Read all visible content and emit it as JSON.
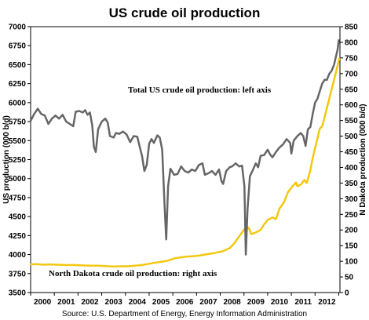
{
  "chart_data": {
    "type": "line",
    "title": "US crude oil production",
    "source": "Source: U.S. Department of Energy, Energy Information Administration",
    "y_left": {
      "label": "US production (000 b/d)",
      "min": 3500,
      "max": 7000,
      "ticks": [
        "3500",
        "3750",
        "4000",
        "4250",
        "4500",
        "4750",
        "5000",
        "5250",
        "5500",
        "5750",
        "6000",
        "6250",
        "6500",
        "6750",
        "7000"
      ]
    },
    "y_right": {
      "label": "N Dakota production (000 b/d)",
      "min": 0,
      "max": 850,
      "ticks": [
        "0",
        "50",
        "100",
        "150",
        "200",
        "250",
        "300",
        "350",
        "400",
        "450",
        "500",
        "550",
        "600",
        "650",
        "700",
        "750",
        "800",
        "850"
      ]
    },
    "x_axis": {
      "min": 1999.5,
      "max": 2012.55,
      "tick_labels": [
        "2000",
        "2001",
        "2002",
        "2003",
        "2004",
        "2005",
        "2006",
        "2007",
        "2008",
        "2009",
        "2010",
        "2011",
        "2012"
      ]
    },
    "annotations": {
      "us_series": "Total US crude oil production: left axis",
      "nd_series": "North Dakota crude oil production: right axis"
    },
    "series": [
      {
        "axis": "left",
        "color": "#666666",
        "points": [
          [
            1999.5,
            5760
          ],
          [
            1999.65,
            5850
          ],
          [
            1999.8,
            5920
          ],
          [
            1999.95,
            5850
          ],
          [
            2000.1,
            5830
          ],
          [
            2000.25,
            5720
          ],
          [
            2000.4,
            5790
          ],
          [
            2000.55,
            5830
          ],
          [
            2000.7,
            5790
          ],
          [
            2000.85,
            5840
          ],
          [
            2001.0,
            5750
          ],
          [
            2001.15,
            5720
          ],
          [
            2001.3,
            5690
          ],
          [
            2001.4,
            5880
          ],
          [
            2001.55,
            5890
          ],
          [
            2001.7,
            5870
          ],
          [
            2001.8,
            5900
          ],
          [
            2001.9,
            5840
          ],
          [
            2002.0,
            5870
          ],
          [
            2002.1,
            5700
          ],
          [
            2002.17,
            5420
          ],
          [
            2002.25,
            5350
          ],
          [
            2002.35,
            5650
          ],
          [
            2002.5,
            5750
          ],
          [
            2002.65,
            5790
          ],
          [
            2002.75,
            5740
          ],
          [
            2002.85,
            5560
          ],
          [
            2003.0,
            5540
          ],
          [
            2003.1,
            5600
          ],
          [
            2003.25,
            5590
          ],
          [
            2003.4,
            5620
          ],
          [
            2003.55,
            5580
          ],
          [
            2003.7,
            5480
          ],
          [
            2003.85,
            5560
          ],
          [
            2004.0,
            5550
          ],
          [
            2004.1,
            5420
          ],
          [
            2004.2,
            5300
          ],
          [
            2004.3,
            5100
          ],
          [
            2004.4,
            5180
          ],
          [
            2004.5,
            5460
          ],
          [
            2004.6,
            5520
          ],
          [
            2004.7,
            5470
          ],
          [
            2004.85,
            5570
          ],
          [
            2004.95,
            5540
          ],
          [
            2005.05,
            5380
          ],
          [
            2005.15,
            4650
          ],
          [
            2005.22,
            4200
          ],
          [
            2005.3,
            4900
          ],
          [
            2005.4,
            5130
          ],
          [
            2005.55,
            5050
          ],
          [
            2005.7,
            5060
          ],
          [
            2005.85,
            5160
          ],
          [
            2006.0,
            5100
          ],
          [
            2006.15,
            5080
          ],
          [
            2006.3,
            5120
          ],
          [
            2006.45,
            5100
          ],
          [
            2006.6,
            5180
          ],
          [
            2006.75,
            5200
          ],
          [
            2006.85,
            5050
          ],
          [
            2007.0,
            5070
          ],
          [
            2007.15,
            5100
          ],
          [
            2007.3,
            5050
          ],
          [
            2007.45,
            5120
          ],
          [
            2007.55,
            4970
          ],
          [
            2007.62,
            4930
          ],
          [
            2007.75,
            5100
          ],
          [
            2007.9,
            5150
          ],
          [
            2008.0,
            5160
          ],
          [
            2008.15,
            5200
          ],
          [
            2008.3,
            5160
          ],
          [
            2008.42,
            5170
          ],
          [
            2008.52,
            4900
          ],
          [
            2008.58,
            4000
          ],
          [
            2008.65,
            4600
          ],
          [
            2008.75,
            5030
          ],
          [
            2008.9,
            5130
          ],
          [
            2009.0,
            5200
          ],
          [
            2009.1,
            5150
          ],
          [
            2009.2,
            5300
          ],
          [
            2009.35,
            5310
          ],
          [
            2009.5,
            5380
          ],
          [
            2009.6,
            5320
          ],
          [
            2009.7,
            5280
          ],
          [
            2009.85,
            5350
          ],
          [
            2010.0,
            5410
          ],
          [
            2010.15,
            5450
          ],
          [
            2010.3,
            5520
          ],
          [
            2010.45,
            5470
          ],
          [
            2010.5,
            5330
          ],
          [
            2010.6,
            5500
          ],
          [
            2010.75,
            5560
          ],
          [
            2010.9,
            5600
          ],
          [
            2011.0,
            5560
          ],
          [
            2011.1,
            5430
          ],
          [
            2011.2,
            5650
          ],
          [
            2011.3,
            5680
          ],
          [
            2011.4,
            5850
          ],
          [
            2011.5,
            6000
          ],
          [
            2011.6,
            6050
          ],
          [
            2011.7,
            6150
          ],
          [
            2011.8,
            6250
          ],
          [
            2011.9,
            6300
          ],
          [
            2012.0,
            6300
          ],
          [
            2012.1,
            6380
          ],
          [
            2012.2,
            6420
          ],
          [
            2012.3,
            6500
          ],
          [
            2012.45,
            6700
          ],
          [
            2012.5,
            6820
          ]
        ]
      },
      {
        "axis": "right",
        "color": "#F2C811",
        "points": [
          [
            1999.5,
            90
          ],
          [
            1999.8,
            91
          ],
          [
            2000.0,
            89
          ],
          [
            2000.3,
            90
          ],
          [
            2000.6,
            89
          ],
          [
            2001.0,
            88
          ],
          [
            2001.3,
            88
          ],
          [
            2001.6,
            87
          ],
          [
            2002.0,
            86
          ],
          [
            2002.3,
            86
          ],
          [
            2002.6,
            85
          ],
          [
            2003.0,
            83
          ],
          [
            2003.3,
            84
          ],
          [
            2003.6,
            84
          ],
          [
            2003.9,
            86
          ],
          [
            2004.2,
            88
          ],
          [
            2004.5,
            92
          ],
          [
            2004.8,
            96
          ],
          [
            2005.0,
            98
          ],
          [
            2005.3,
            102
          ],
          [
            2005.6,
            110
          ],
          [
            2006.0,
            114
          ],
          [
            2006.3,
            116
          ],
          [
            2006.6,
            118
          ],
          [
            2007.0,
            123
          ],
          [
            2007.3,
            127
          ],
          [
            2007.6,
            132
          ],
          [
            2007.9,
            142
          ],
          [
            2008.1,
            158
          ],
          [
            2008.3,
            180
          ],
          [
            2008.5,
            200
          ],
          [
            2008.6,
            215
          ],
          [
            2008.75,
            200
          ],
          [
            2008.8,
            187
          ],
          [
            2009.0,
            192
          ],
          [
            2009.2,
            200
          ],
          [
            2009.35,
            218
          ],
          [
            2009.5,
            232
          ],
          [
            2009.7,
            240
          ],
          [
            2009.85,
            235
          ],
          [
            2010.0,
            268
          ],
          [
            2010.2,
            290
          ],
          [
            2010.35,
            320
          ],
          [
            2010.55,
            340
          ],
          [
            2010.7,
            352
          ],
          [
            2010.75,
            340
          ],
          [
            2010.9,
            345
          ],
          [
            2011.05,
            360
          ],
          [
            2011.15,
            350
          ],
          [
            2011.3,
            392
          ],
          [
            2011.4,
            430
          ],
          [
            2011.5,
            462
          ],
          [
            2011.6,
            492
          ],
          [
            2011.7,
            524
          ],
          [
            2011.8,
            532
          ],
          [
            2011.9,
            560
          ],
          [
            2012.0,
            590
          ],
          [
            2012.1,
            620
          ],
          [
            2012.2,
            650
          ],
          [
            2012.3,
            680
          ],
          [
            2012.4,
            710
          ],
          [
            2012.52,
            748
          ]
        ]
      }
    ]
  }
}
